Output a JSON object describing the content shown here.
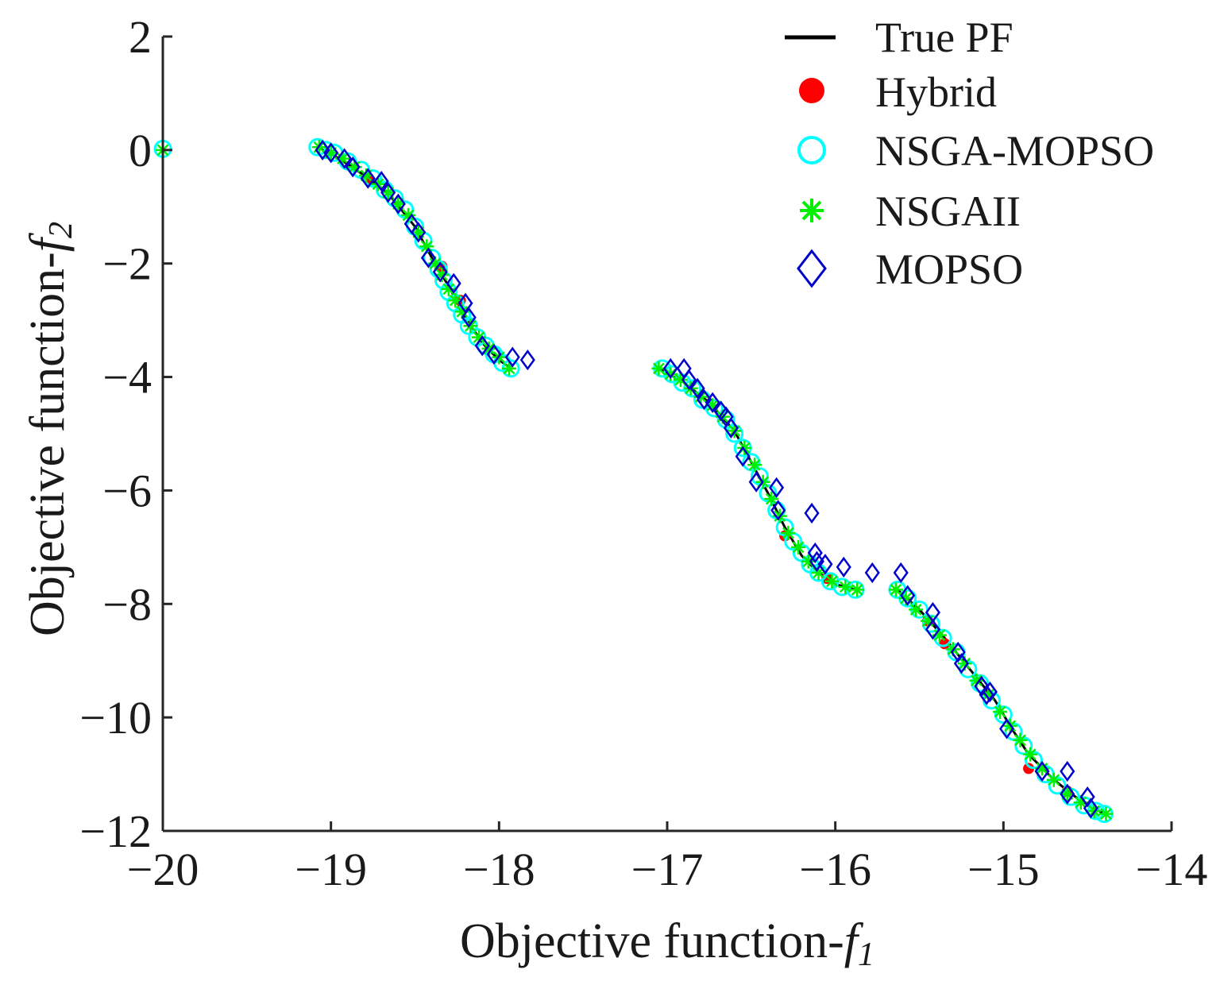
{
  "chart_data": {
    "type": "scatter",
    "title": "",
    "xlabel": "Objective function-",
    "xlabel_sub": "f",
    "xlabel_subscript": "1",
    "ylabel": "Objective function-",
    "ylabel_sub": "f",
    "ylabel_subscript": "2",
    "xlim": [
      -20,
      -14
    ],
    "ylim": [
      -12,
      2
    ],
    "x_ticks": [
      -20,
      -19,
      -18,
      -17,
      -16,
      -15,
      -14
    ],
    "y_ticks": [
      -12,
      -10,
      -8,
      -6,
      -4,
      -2,
      0,
      2
    ],
    "x_tick_labels": [
      "−20",
      "−19",
      "−18",
      "−17",
      "−16",
      "−15",
      "−14"
    ],
    "y_tick_labels": [
      "−12",
      "−10",
      "−8",
      "−6",
      "−4",
      "−2",
      "0",
      "2"
    ],
    "legend_position": "top-right",
    "series": [
      {
        "name": "True PF",
        "marker": "line",
        "color": "#000000",
        "segments": [
          [
            [
              -20.0,
              0.0
            ]
          ],
          [
            [
              -19.08,
              0.05
            ],
            [
              -18.95,
              -0.15
            ],
            [
              -18.8,
              -0.45
            ],
            [
              -18.65,
              -0.8
            ],
            [
              -18.5,
              -1.35
            ],
            [
              -18.4,
              -1.9
            ],
            [
              -18.3,
              -2.4
            ],
            [
              -18.2,
              -2.95
            ],
            [
              -18.1,
              -3.4
            ],
            [
              -18.0,
              -3.7
            ],
            [
              -17.93,
              -3.85
            ]
          ],
          [
            [
              -17.05,
              -3.85
            ],
            [
              -16.9,
              -4.1
            ],
            [
              -16.75,
              -4.45
            ],
            [
              -16.6,
              -4.95
            ],
            [
              -16.5,
              -5.5
            ],
            [
              -16.4,
              -6.05
            ],
            [
              -16.3,
              -6.65
            ],
            [
              -16.2,
              -7.15
            ],
            [
              -16.1,
              -7.45
            ],
            [
              -16.0,
              -7.65
            ],
            [
              -15.88,
              -7.75
            ]
          ],
          [
            [
              -15.63,
              -7.75
            ],
            [
              -15.5,
              -8.1
            ],
            [
              -15.35,
              -8.6
            ],
            [
              -15.2,
              -9.15
            ],
            [
              -15.05,
              -9.7
            ],
            [
              -14.95,
              -10.2
            ],
            [
              -14.85,
              -10.65
            ],
            [
              -14.7,
              -11.1
            ],
            [
              -14.55,
              -11.45
            ],
            [
              -14.4,
              -11.7
            ]
          ]
        ]
      },
      {
        "name": "Hybrid",
        "marker": "filled-circle",
        "color": "#ff0000",
        "points": [
          [
            -18.78,
            -0.5
          ],
          [
            -18.34,
            -2.05
          ],
          [
            -18.23,
            -2.65
          ],
          [
            -16.3,
            -6.8
          ],
          [
            -16.05,
            -7.55
          ],
          [
            -15.45,
            -8.3
          ],
          [
            -15.35,
            -8.7
          ],
          [
            -14.85,
            -10.9
          ],
          [
            -14.62,
            -11.3
          ]
        ]
      },
      {
        "name": "NSGA-MOPSO",
        "marker": "open-circle",
        "color": "#00ffff",
        "points": [
          [
            -20.0,
            0.02
          ],
          [
            -19.08,
            0.05
          ],
          [
            -19.03,
            0.0
          ],
          [
            -18.98,
            -0.05
          ],
          [
            -18.9,
            -0.2
          ],
          [
            -18.82,
            -0.35
          ],
          [
            -18.75,
            -0.5
          ],
          [
            -18.68,
            -0.7
          ],
          [
            -18.62,
            -0.85
          ],
          [
            -18.56,
            -1.05
          ],
          [
            -18.5,
            -1.35
          ],
          [
            -18.45,
            -1.6
          ],
          [
            -18.4,
            -1.9
          ],
          [
            -18.36,
            -2.1
          ],
          [
            -18.33,
            -2.3
          ],
          [
            -18.3,
            -2.5
          ],
          [
            -18.26,
            -2.7
          ],
          [
            -18.22,
            -2.9
          ],
          [
            -18.18,
            -3.1
          ],
          [
            -18.13,
            -3.3
          ],
          [
            -18.08,
            -3.45
          ],
          [
            -18.03,
            -3.6
          ],
          [
            -17.98,
            -3.75
          ],
          [
            -17.93,
            -3.85
          ],
          [
            -17.03,
            -3.85
          ],
          [
            -16.97,
            -3.95
          ],
          [
            -16.91,
            -4.1
          ],
          [
            -16.85,
            -4.2
          ],
          [
            -16.79,
            -4.4
          ],
          [
            -16.72,
            -4.55
          ],
          [
            -16.65,
            -4.75
          ],
          [
            -16.6,
            -5.0
          ],
          [
            -16.55,
            -5.25
          ],
          [
            -16.5,
            -5.5
          ],
          [
            -16.45,
            -5.75
          ],
          [
            -16.4,
            -6.05
          ],
          [
            -16.35,
            -6.35
          ],
          [
            -16.3,
            -6.65
          ],
          [
            -16.25,
            -6.9
          ],
          [
            -16.2,
            -7.1
          ],
          [
            -16.15,
            -7.3
          ],
          [
            -16.1,
            -7.45
          ],
          [
            -16.03,
            -7.6
          ],
          [
            -15.96,
            -7.7
          ],
          [
            -15.88,
            -7.75
          ],
          [
            -15.63,
            -7.75
          ],
          [
            -15.57,
            -7.9
          ],
          [
            -15.5,
            -8.1
          ],
          [
            -15.43,
            -8.35
          ],
          [
            -15.36,
            -8.6
          ],
          [
            -15.28,
            -8.85
          ],
          [
            -15.21,
            -9.15
          ],
          [
            -15.14,
            -9.4
          ],
          [
            -15.07,
            -9.7
          ],
          [
            -15.0,
            -9.95
          ],
          [
            -14.94,
            -10.25
          ],
          [
            -14.88,
            -10.5
          ],
          [
            -14.82,
            -10.75
          ],
          [
            -14.75,
            -11.0
          ],
          [
            -14.68,
            -11.2
          ],
          [
            -14.6,
            -11.4
          ],
          [
            -14.52,
            -11.55
          ],
          [
            -14.45,
            -11.65
          ],
          [
            -14.4,
            -11.7
          ]
        ]
      },
      {
        "name": "NSGAII",
        "marker": "asterisk",
        "color": "#00ee00",
        "points": [
          [
            -20.0,
            0.0
          ],
          [
            -19.07,
            0.05
          ],
          [
            -19.0,
            -0.05
          ],
          [
            -18.93,
            -0.15
          ],
          [
            -18.86,
            -0.3
          ],
          [
            -18.79,
            -0.45
          ],
          [
            -18.72,
            -0.6
          ],
          [
            -18.66,
            -0.75
          ],
          [
            -18.6,
            -0.95
          ],
          [
            -18.54,
            -1.15
          ],
          [
            -18.48,
            -1.45
          ],
          [
            -18.43,
            -1.7
          ],
          [
            -18.38,
            -2.0
          ],
          [
            -18.34,
            -2.2
          ],
          [
            -18.3,
            -2.45
          ],
          [
            -18.26,
            -2.65
          ],
          [
            -18.22,
            -2.85
          ],
          [
            -18.17,
            -3.1
          ],
          [
            -18.12,
            -3.3
          ],
          [
            -18.06,
            -3.5
          ],
          [
            -18.0,
            -3.65
          ],
          [
            -17.94,
            -3.85
          ],
          [
            -17.05,
            -3.85
          ],
          [
            -16.98,
            -3.95
          ],
          [
            -16.92,
            -4.05
          ],
          [
            -16.86,
            -4.2
          ],
          [
            -16.8,
            -4.35
          ],
          [
            -16.73,
            -4.5
          ],
          [
            -16.67,
            -4.7
          ],
          [
            -16.6,
            -4.95
          ],
          [
            -16.54,
            -5.25
          ],
          [
            -16.48,
            -5.55
          ],
          [
            -16.43,
            -5.85
          ],
          [
            -16.38,
            -6.15
          ],
          [
            -16.33,
            -6.45
          ],
          [
            -16.28,
            -6.75
          ],
          [
            -16.22,
            -7.0
          ],
          [
            -16.16,
            -7.25
          ],
          [
            -16.1,
            -7.45
          ],
          [
            -16.02,
            -7.6
          ],
          [
            -15.94,
            -7.7
          ],
          [
            -15.87,
            -7.75
          ],
          [
            -15.64,
            -7.75
          ],
          [
            -15.58,
            -7.9
          ],
          [
            -15.52,
            -8.1
          ],
          [
            -15.45,
            -8.3
          ],
          [
            -15.38,
            -8.55
          ],
          [
            -15.3,
            -8.8
          ],
          [
            -15.23,
            -9.05
          ],
          [
            -15.16,
            -9.35
          ],
          [
            -15.09,
            -9.6
          ],
          [
            -15.02,
            -9.9
          ],
          [
            -14.96,
            -10.15
          ],
          [
            -14.9,
            -10.4
          ],
          [
            -14.84,
            -10.65
          ],
          [
            -14.77,
            -10.9
          ],
          [
            -14.7,
            -11.1
          ],
          [
            -14.62,
            -11.35
          ],
          [
            -14.54,
            -11.5
          ],
          [
            -14.46,
            -11.65
          ],
          [
            -14.39,
            -11.7
          ]
        ]
      },
      {
        "name": "MOPSO",
        "marker": "open-diamond",
        "color": "#0000cc",
        "points": [
          [
            -19.05,
            0.0
          ],
          [
            -19.0,
            -0.05
          ],
          [
            -18.92,
            -0.15
          ],
          [
            -18.87,
            -0.3
          ],
          [
            -18.78,
            -0.5
          ],
          [
            -18.7,
            -0.55
          ],
          [
            -18.66,
            -0.75
          ],
          [
            -18.6,
            -0.95
          ],
          [
            -18.52,
            -1.3
          ],
          [
            -18.48,
            -1.45
          ],
          [
            -18.42,
            -1.9
          ],
          [
            -18.35,
            -2.15
          ],
          [
            -18.27,
            -2.35
          ],
          [
            -18.2,
            -2.7
          ],
          [
            -18.18,
            -2.95
          ],
          [
            -18.1,
            -3.45
          ],
          [
            -18.03,
            -3.6
          ],
          [
            -17.92,
            -3.65
          ],
          [
            -17.83,
            -3.7
          ],
          [
            -16.98,
            -3.85
          ],
          [
            -16.9,
            -3.85
          ],
          [
            -16.87,
            -4.05
          ],
          [
            -16.82,
            -4.2
          ],
          [
            -16.78,
            -4.4
          ],
          [
            -16.73,
            -4.45
          ],
          [
            -16.68,
            -4.6
          ],
          [
            -16.65,
            -4.7
          ],
          [
            -16.62,
            -4.9
          ],
          [
            -16.55,
            -5.4
          ],
          [
            -16.47,
            -5.85
          ],
          [
            -16.35,
            -5.95
          ],
          [
            -16.34,
            -6.35
          ],
          [
            -16.14,
            -6.4
          ],
          [
            -16.12,
            -7.1
          ],
          [
            -16.11,
            -7.25
          ],
          [
            -16.06,
            -7.3
          ],
          [
            -15.95,
            -7.35
          ],
          [
            -15.78,
            -7.45
          ],
          [
            -15.61,
            -7.45
          ],
          [
            -15.57,
            -7.85
          ],
          [
            -15.42,
            -8.15
          ],
          [
            -15.42,
            -8.45
          ],
          [
            -15.27,
            -8.85
          ],
          [
            -15.25,
            -9.05
          ],
          [
            -15.13,
            -9.45
          ],
          [
            -15.1,
            -9.6
          ],
          [
            -15.08,
            -9.55
          ],
          [
            -14.98,
            -10.2
          ],
          [
            -14.77,
            -10.95
          ],
          [
            -14.62,
            -10.95
          ],
          [
            -14.62,
            -11.35
          ],
          [
            -14.5,
            -11.4
          ],
          [
            -14.48,
            -11.6
          ]
        ]
      }
    ]
  }
}
